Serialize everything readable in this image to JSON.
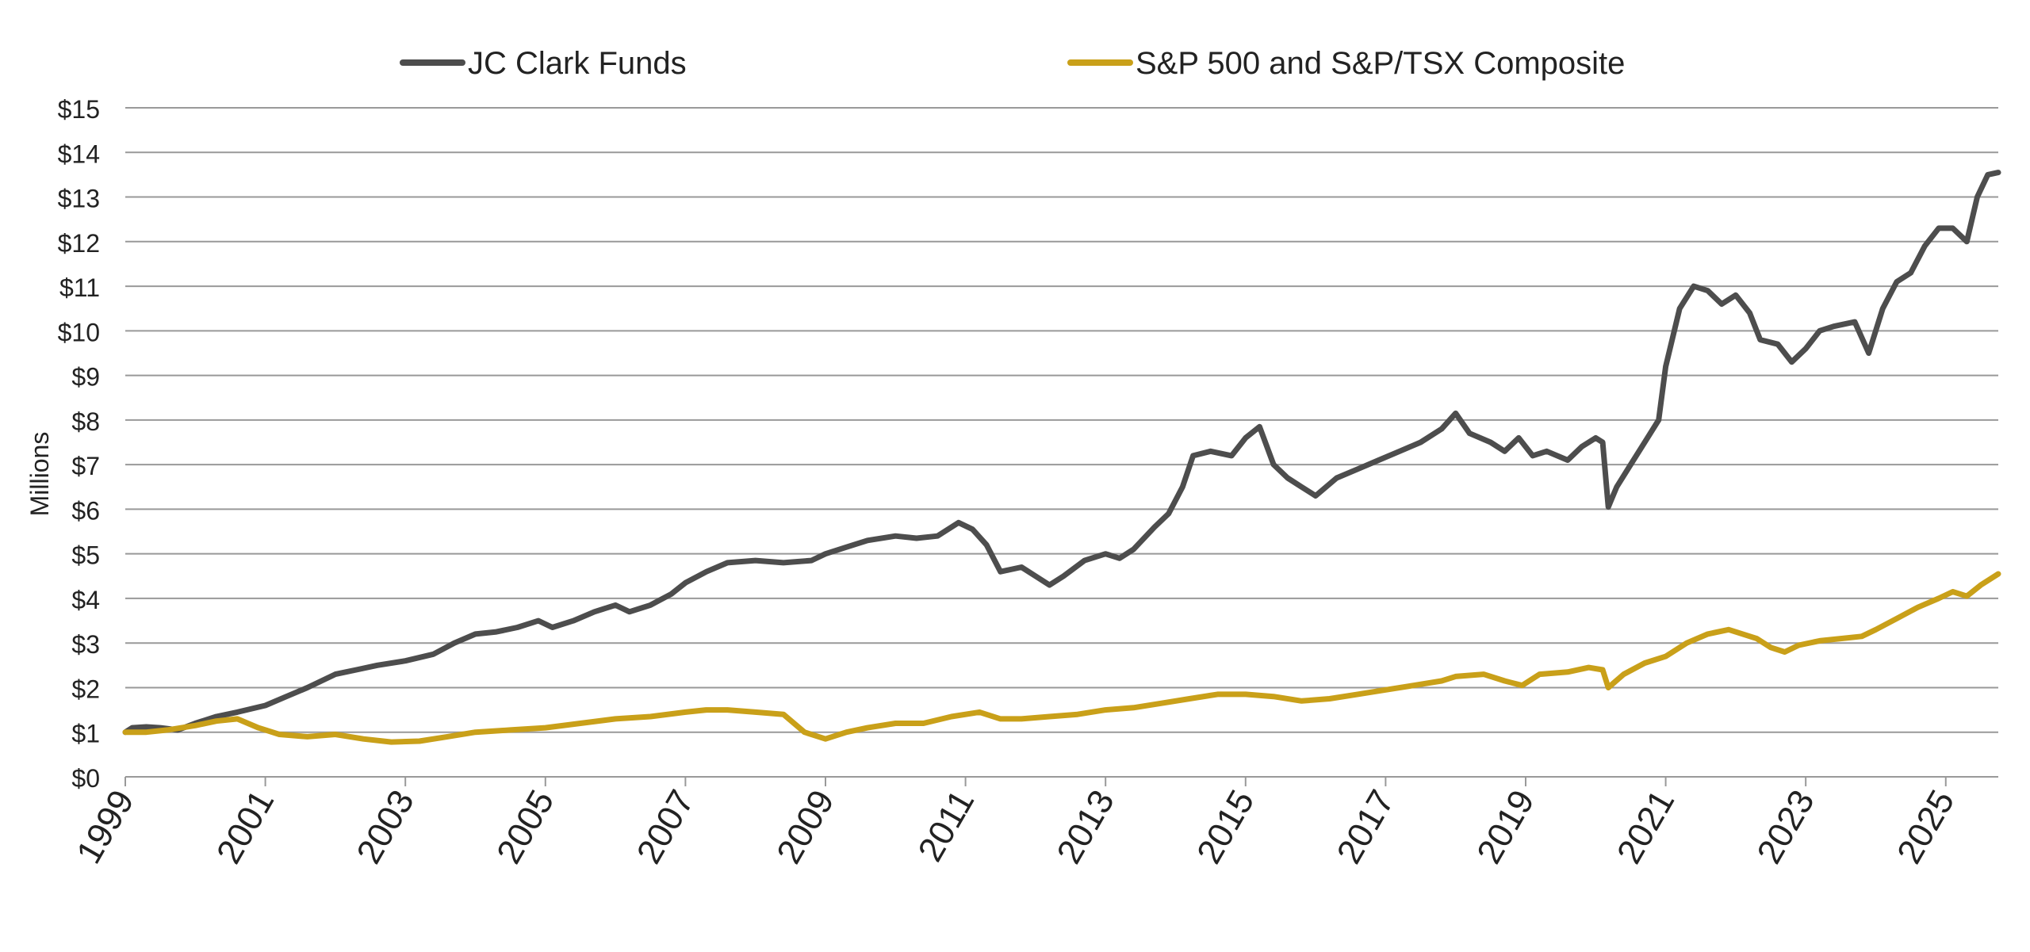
{
  "chart_data": {
    "type": "line",
    "title": "",
    "xlabel": "",
    "ylabel": "Millions",
    "xlim": [
      1999,
      2025.75
    ],
    "ylim": [
      0,
      15
    ],
    "x_ticks": [
      1999,
      2001,
      2003,
      2005,
      2007,
      2009,
      2011,
      2013,
      2015,
      2017,
      2019,
      2021,
      2023,
      2025
    ],
    "x_tick_labels": [
      "1999",
      "2001",
      "2003",
      "2005",
      "2007",
      "2009",
      "2011",
      "2013",
      "2015",
      "2017",
      "2019",
      "2021",
      "2023",
      "2025"
    ],
    "y_ticks": [
      0,
      1,
      2,
      3,
      4,
      5,
      6,
      7,
      8,
      9,
      10,
      11,
      12,
      13,
      14,
      15
    ],
    "y_tick_labels": [
      "$0",
      "$1",
      "$2",
      "$3",
      "$4",
      "$5",
      "$6",
      "$7",
      "$8",
      "$9",
      "$10",
      "$11",
      "$12",
      "$13",
      "$14",
      "$15"
    ],
    "grid": "horizontal",
    "legend_position": "top",
    "series": [
      {
        "name": "JC Clark Funds",
        "color": "#4d4d4d",
        "points": [
          [
            1999.0,
            1.0
          ],
          [
            1999.1,
            1.1
          ],
          [
            1999.3,
            1.12
          ],
          [
            1999.5,
            1.1
          ],
          [
            1999.75,
            1.05
          ],
          [
            2000.0,
            1.2
          ],
          [
            2000.3,
            1.35
          ],
          [
            2000.6,
            1.45
          ],
          [
            2001.0,
            1.6
          ],
          [
            2001.3,
            1.8
          ],
          [
            2001.6,
            2.0
          ],
          [
            2002.0,
            2.3
          ],
          [
            2002.3,
            2.4
          ],
          [
            2002.6,
            2.5
          ],
          [
            2003.0,
            2.6
          ],
          [
            2003.4,
            2.75
          ],
          [
            2003.7,
            3.0
          ],
          [
            2004.0,
            3.2
          ],
          [
            2004.3,
            3.25
          ],
          [
            2004.6,
            3.35
          ],
          [
            2004.9,
            3.5
          ],
          [
            2005.1,
            3.35
          ],
          [
            2005.4,
            3.5
          ],
          [
            2005.7,
            3.7
          ],
          [
            2006.0,
            3.85
          ],
          [
            2006.2,
            3.7
          ],
          [
            2006.5,
            3.85
          ],
          [
            2006.8,
            4.1
          ],
          [
            2007.0,
            4.35
          ],
          [
            2007.3,
            4.6
          ],
          [
            2007.6,
            4.8
          ],
          [
            2008.0,
            4.85
          ],
          [
            2008.4,
            4.8
          ],
          [
            2008.8,
            4.85
          ],
          [
            2009.0,
            5.0
          ],
          [
            2009.3,
            5.15
          ],
          [
            2009.6,
            5.3
          ],
          [
            2010.0,
            5.4
          ],
          [
            2010.3,
            5.35
          ],
          [
            2010.6,
            5.4
          ],
          [
            2010.9,
            5.7
          ],
          [
            2011.1,
            5.55
          ],
          [
            2011.3,
            5.2
          ],
          [
            2011.5,
            4.6
          ],
          [
            2011.8,
            4.7
          ],
          [
            2012.0,
            4.5
          ],
          [
            2012.2,
            4.3
          ],
          [
            2012.4,
            4.5
          ],
          [
            2012.7,
            4.85
          ],
          [
            2013.0,
            5.0
          ],
          [
            2013.2,
            4.9
          ],
          [
            2013.4,
            5.1
          ],
          [
            2013.7,
            5.6
          ],
          [
            2013.9,
            5.9
          ],
          [
            2014.1,
            6.5
          ],
          [
            2014.25,
            7.2
          ],
          [
            2014.5,
            7.3
          ],
          [
            2014.8,
            7.2
          ],
          [
            2015.0,
            7.6
          ],
          [
            2015.2,
            7.85
          ],
          [
            2015.4,
            7.0
          ],
          [
            2015.6,
            6.7
          ],
          [
            2015.8,
            6.5
          ],
          [
            2016.0,
            6.3
          ],
          [
            2016.3,
            6.7
          ],
          [
            2016.6,
            6.9
          ],
          [
            2016.9,
            7.1
          ],
          [
            2017.2,
            7.3
          ],
          [
            2017.5,
            7.5
          ],
          [
            2017.8,
            7.8
          ],
          [
            2018.0,
            8.15
          ],
          [
            2018.2,
            7.7
          ],
          [
            2018.5,
            7.5
          ],
          [
            2018.7,
            7.3
          ],
          [
            2018.9,
            7.6
          ],
          [
            2019.1,
            7.2
          ],
          [
            2019.3,
            7.3
          ],
          [
            2019.6,
            7.1
          ],
          [
            2019.8,
            7.4
          ],
          [
            2020.0,
            7.6
          ],
          [
            2020.1,
            7.5
          ],
          [
            2020.18,
            6.05
          ],
          [
            2020.3,
            6.5
          ],
          [
            2020.5,
            7.0
          ],
          [
            2020.7,
            7.5
          ],
          [
            2020.9,
            8.0
          ],
          [
            2021.0,
            9.2
          ],
          [
            2021.2,
            10.5
          ],
          [
            2021.4,
            11.0
          ],
          [
            2021.6,
            10.9
          ],
          [
            2021.8,
            10.6
          ],
          [
            2022.0,
            10.8
          ],
          [
            2022.2,
            10.4
          ],
          [
            2022.35,
            9.8
          ],
          [
            2022.6,
            9.7
          ],
          [
            2022.8,
            9.3
          ],
          [
            2023.0,
            9.6
          ],
          [
            2023.2,
            10.0
          ],
          [
            2023.4,
            10.1
          ],
          [
            2023.7,
            10.2
          ],
          [
            2023.9,
            9.5
          ],
          [
            2024.1,
            10.5
          ],
          [
            2024.3,
            11.1
          ],
          [
            2024.5,
            11.3
          ],
          [
            2024.7,
            11.9
          ],
          [
            2024.9,
            12.3
          ],
          [
            2025.1,
            12.3
          ],
          [
            2025.3,
            12.0
          ],
          [
            2025.45,
            13.0
          ],
          [
            2025.6,
            13.5
          ],
          [
            2025.75,
            13.55
          ]
        ]
      },
      {
        "name": "S&P 500 and S&P/TSX Composite",
        "color": "#c9a019",
        "points": [
          [
            1999.0,
            1.0
          ],
          [
            1999.3,
            1.0
          ],
          [
            1999.6,
            1.05
          ],
          [
            2000.0,
            1.15
          ],
          [
            2000.3,
            1.25
          ],
          [
            2000.6,
            1.3
          ],
          [
            2000.9,
            1.1
          ],
          [
            2001.2,
            0.95
          ],
          [
            2001.6,
            0.9
          ],
          [
            2002.0,
            0.95
          ],
          [
            2002.4,
            0.85
          ],
          [
            2002.8,
            0.78
          ],
          [
            2003.2,
            0.8
          ],
          [
            2003.6,
            0.9
          ],
          [
            2004.0,
            1.0
          ],
          [
            2004.5,
            1.05
          ],
          [
            2005.0,
            1.1
          ],
          [
            2005.5,
            1.2
          ],
          [
            2006.0,
            1.3
          ],
          [
            2006.5,
            1.35
          ],
          [
            2007.0,
            1.45
          ],
          [
            2007.3,
            1.5
          ],
          [
            2007.6,
            1.5
          ],
          [
            2008.0,
            1.45
          ],
          [
            2008.4,
            1.4
          ],
          [
            2008.7,
            1.0
          ],
          [
            2009.0,
            0.85
          ],
          [
            2009.3,
            1.0
          ],
          [
            2009.6,
            1.1
          ],
          [
            2010.0,
            1.2
          ],
          [
            2010.4,
            1.2
          ],
          [
            2010.8,
            1.35
          ],
          [
            2011.2,
            1.45
          ],
          [
            2011.5,
            1.3
          ],
          [
            2011.8,
            1.3
          ],
          [
            2012.2,
            1.35
          ],
          [
            2012.6,
            1.4
          ],
          [
            2013.0,
            1.5
          ],
          [
            2013.4,
            1.55
          ],
          [
            2013.8,
            1.65
          ],
          [
            2014.2,
            1.75
          ],
          [
            2014.6,
            1.85
          ],
          [
            2015.0,
            1.85
          ],
          [
            2015.4,
            1.8
          ],
          [
            2015.8,
            1.7
          ],
          [
            2016.2,
            1.75
          ],
          [
            2016.6,
            1.85
          ],
          [
            2017.0,
            1.95
          ],
          [
            2017.4,
            2.05
          ],
          [
            2017.8,
            2.15
          ],
          [
            2018.0,
            2.25
          ],
          [
            2018.4,
            2.3
          ],
          [
            2018.7,
            2.15
          ],
          [
            2018.95,
            2.05
          ],
          [
            2019.2,
            2.3
          ],
          [
            2019.6,
            2.35
          ],
          [
            2019.9,
            2.45
          ],
          [
            2020.1,
            2.4
          ],
          [
            2020.18,
            2.0
          ],
          [
            2020.4,
            2.3
          ],
          [
            2020.7,
            2.55
          ],
          [
            2021.0,
            2.7
          ],
          [
            2021.3,
            3.0
          ],
          [
            2021.6,
            3.2
          ],
          [
            2021.9,
            3.3
          ],
          [
            2022.1,
            3.2
          ],
          [
            2022.3,
            3.1
          ],
          [
            2022.5,
            2.9
          ],
          [
            2022.7,
            2.8
          ],
          [
            2022.9,
            2.95
          ],
          [
            2023.2,
            3.05
          ],
          [
            2023.5,
            3.1
          ],
          [
            2023.8,
            3.15
          ],
          [
            2024.0,
            3.3
          ],
          [
            2024.3,
            3.55
          ],
          [
            2024.6,
            3.8
          ],
          [
            2024.9,
            4.0
          ],
          [
            2025.1,
            4.15
          ],
          [
            2025.3,
            4.05
          ],
          [
            2025.5,
            4.3
          ],
          [
            2025.75,
            4.55
          ]
        ]
      }
    ]
  }
}
